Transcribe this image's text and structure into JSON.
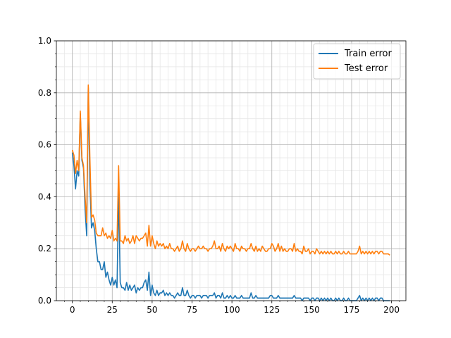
{
  "chart_data": {
    "type": "line",
    "title": "",
    "xlabel": "",
    "ylabel": "",
    "xlim": [
      -10,
      209
    ],
    "ylim": [
      0,
      1.0
    ],
    "x_start": 0,
    "x_step": 1,
    "xticks": [
      "0",
      "25",
      "50",
      "75",
      "100",
      "125",
      "150",
      "175",
      "200"
    ],
    "yticks": [
      "0.0",
      "0.2",
      "0.4",
      "0.6",
      "0.8",
      "1.0"
    ],
    "grid": {
      "major": true,
      "minor": true
    },
    "legend_position": "top-right",
    "series": [
      {
        "name": "Train error",
        "color": "#1f77b4",
        "values": [
          0.57,
          0.52,
          0.43,
          0.5,
          0.48,
          0.72,
          0.54,
          0.51,
          0.35,
          0.25,
          0.82,
          0.45,
          0.28,
          0.3,
          0.27,
          0.2,
          0.15,
          0.15,
          0.12,
          0.12,
          0.15,
          0.09,
          0.11,
          0.08,
          0.06,
          0.09,
          0.06,
          0.08,
          0.05,
          0.42,
          0.07,
          0.05,
          0.05,
          0.04,
          0.07,
          0.04,
          0.06,
          0.04,
          0.05,
          0.06,
          0.03,
          0.05,
          0.04,
          0.05,
          0.05,
          0.07,
          0.08,
          0.04,
          0.11,
          0.02,
          0.06,
          0.03,
          0.02,
          0.04,
          0.02,
          0.03,
          0.03,
          0.04,
          0.02,
          0.03,
          0.02,
          0.03,
          0.02,
          0.02,
          0.01,
          0.02,
          0.03,
          0.02,
          0.02,
          0.05,
          0.02,
          0.02,
          0.04,
          0.02,
          0.01,
          0.02,
          0.02,
          0.01,
          0.02,
          0.02,
          0.02,
          0.01,
          0.02,
          0.02,
          0.02,
          0.01,
          0.02,
          0.02,
          0.02,
          0.03,
          0.01,
          0.02,
          0.02,
          0.01,
          0.03,
          0.01,
          0.01,
          0.02,
          0.01,
          0.02,
          0.01,
          0.01,
          0.02,
          0.01,
          0.01,
          0.01,
          0.02,
          0.01,
          0.01,
          0.01,
          0.01,
          0.01,
          0.03,
          0.01,
          0.01,
          0.02,
          0.01,
          0.01,
          0.01,
          0.01,
          0.01,
          0.01,
          0.01,
          0.01,
          0.02,
          0.02,
          0.01,
          0.01,
          0.01,
          0.02,
          0.01,
          0.01,
          0.01,
          0.01,
          0.01,
          0.01,
          0.01,
          0.01,
          0.01,
          0.02,
          0.01,
          0.01,
          0.01,
          0.01,
          0.0,
          0.01,
          0.01,
          0.01,
          0.01,
          0.0,
          0.01,
          0.01,
          0.0,
          0.01,
          0.01,
          0.0,
          0.01,
          0.0,
          0.01,
          0.0,
          0.01,
          0.0,
          0.01,
          0.0,
          0.0,
          0.01,
          0.0,
          0.01,
          0.0,
          0.0,
          0.01,
          0.0,
          0.0,
          0.01,
          0.0,
          0.0,
          0.0,
          0.0,
          0.0,
          0.01,
          0.02,
          0.0,
          0.01,
          0.0,
          0.01,
          0.0,
          0.01,
          0.0,
          0.01,
          0.0,
          0.01,
          0.01,
          0.0,
          0.01,
          0.01,
          0.0,
          0.0,
          0.0,
          0.0,
          0.0
        ]
      },
      {
        "name": "Test error",
        "color": "#ff7f0e",
        "values": [
          0.58,
          0.56,
          0.49,
          0.54,
          0.5,
          0.73,
          0.55,
          0.52,
          0.4,
          0.3,
          0.83,
          0.55,
          0.32,
          0.33,
          0.31,
          0.26,
          0.25,
          0.25,
          0.25,
          0.28,
          0.25,
          0.26,
          0.24,
          0.25,
          0.24,
          0.27,
          0.23,
          0.24,
          0.23,
          0.52,
          0.23,
          0.23,
          0.22,
          0.25,
          0.23,
          0.24,
          0.22,
          0.23,
          0.25,
          0.22,
          0.25,
          0.24,
          0.23,
          0.24,
          0.24,
          0.25,
          0.26,
          0.21,
          0.29,
          0.21,
          0.25,
          0.22,
          0.2,
          0.23,
          0.21,
          0.22,
          0.21,
          0.22,
          0.2,
          0.21,
          0.2,
          0.22,
          0.2,
          0.2,
          0.19,
          0.2,
          0.21,
          0.19,
          0.2,
          0.23,
          0.2,
          0.19,
          0.22,
          0.2,
          0.19,
          0.2,
          0.2,
          0.19,
          0.2,
          0.21,
          0.2,
          0.2,
          0.21,
          0.2,
          0.2,
          0.19,
          0.2,
          0.2,
          0.21,
          0.23,
          0.2,
          0.2,
          0.21,
          0.19,
          0.22,
          0.2,
          0.19,
          0.21,
          0.2,
          0.21,
          0.2,
          0.19,
          0.22,
          0.2,
          0.2,
          0.19,
          0.21,
          0.2,
          0.2,
          0.19,
          0.2,
          0.2,
          0.22,
          0.2,
          0.19,
          0.21,
          0.19,
          0.2,
          0.19,
          0.21,
          0.2,
          0.19,
          0.19,
          0.2,
          0.2,
          0.22,
          0.21,
          0.19,
          0.2,
          0.22,
          0.19,
          0.21,
          0.19,
          0.2,
          0.19,
          0.19,
          0.2,
          0.2,
          0.19,
          0.22,
          0.19,
          0.2,
          0.19,
          0.19,
          0.18,
          0.21,
          0.19,
          0.19,
          0.2,
          0.18,
          0.19,
          0.19,
          0.18,
          0.2,
          0.19,
          0.18,
          0.19,
          0.18,
          0.19,
          0.18,
          0.19,
          0.18,
          0.19,
          0.18,
          0.18,
          0.19,
          0.18,
          0.19,
          0.18,
          0.18,
          0.19,
          0.18,
          0.18,
          0.19,
          0.18,
          0.18,
          0.18,
          0.18,
          0.18,
          0.19,
          0.21,
          0.18,
          0.19,
          0.18,
          0.19,
          0.18,
          0.19,
          0.18,
          0.19,
          0.18,
          0.19,
          0.19,
          0.18,
          0.19,
          0.19,
          0.18,
          0.18,
          0.18,
          0.18,
          0.175
        ]
      }
    ]
  }
}
